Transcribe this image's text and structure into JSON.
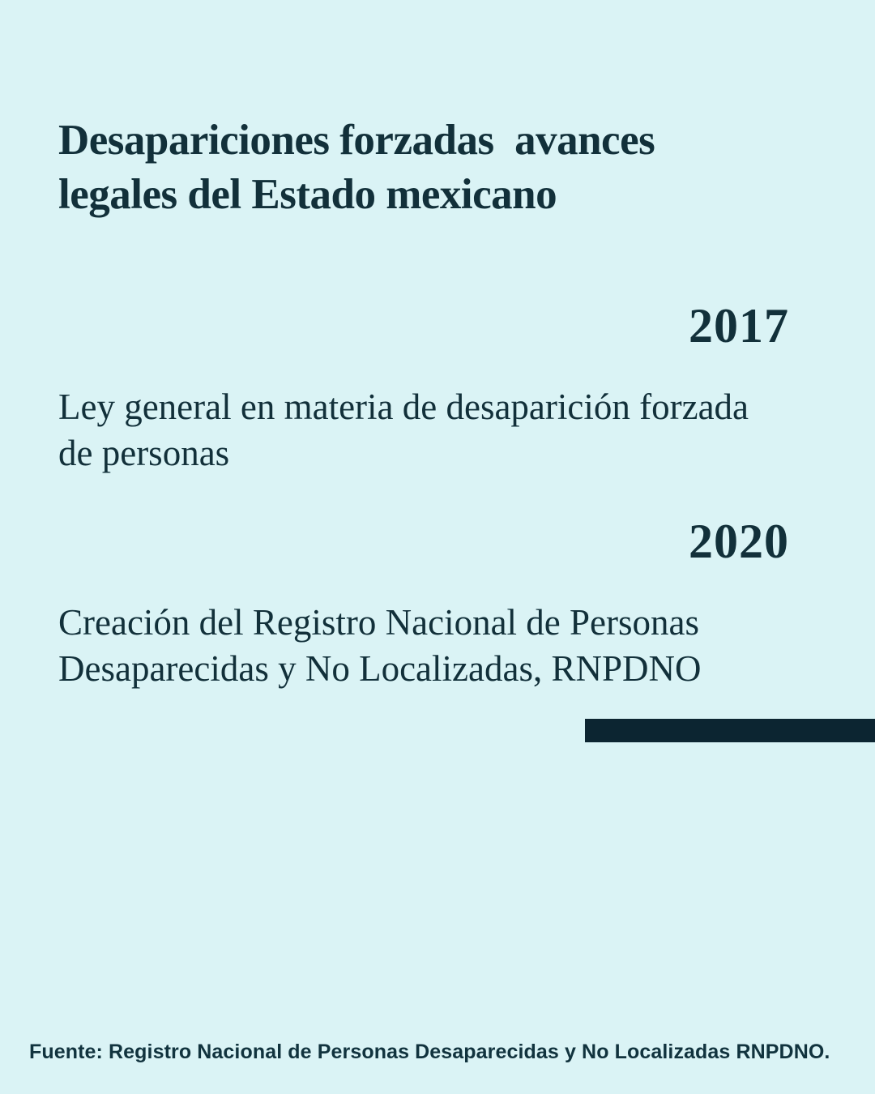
{
  "theme": {
    "background": "#daf3f5",
    "ink": "#12303a",
    "bar": "#0c2531",
    "footer_ink": "#11333e"
  },
  "header": {
    "title": "Desapariciones forzadas  avances\nlegales del Estado mexicano"
  },
  "timeline": {
    "entries": [
      {
        "year": "2017",
        "description": "Ley general en materia de desaparición forzada\nde personas"
      },
      {
        "year": "2020",
        "description": "Creación del Registro Nacional de Personas\nDesaparecidas y No Localizadas, RNPDNO"
      }
    ]
  },
  "footer": {
    "source": "Fuente: Registro Nacional de Personas Desaparecidas y No Localizadas RNPDNO."
  }
}
